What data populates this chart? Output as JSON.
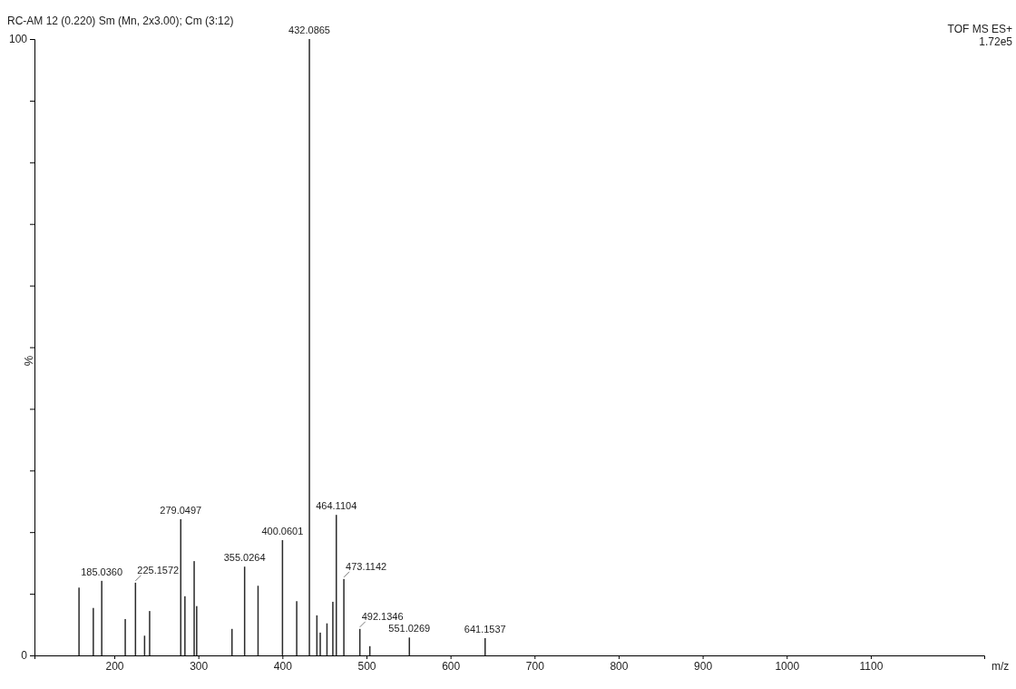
{
  "chart_data": {
    "type": "bar",
    "title": "RC-AM  12 (0.220) Sm (Mn, 2x3.00); Cm (3:12)",
    "xlabel": "m/z",
    "ylabel": "%",
    "x": [
      158,
      175,
      185.036,
      213,
      225.1572,
      236,
      242,
      279.0497,
      284,
      295,
      298,
      340,
      355.0264,
      371,
      400.0601,
      417,
      432.0865,
      441,
      445,
      453,
      460,
      464.1104,
      473.1142,
      492.1346,
      504,
      551.0269,
      641.1537
    ],
    "values": [
      11.0,
      7.7,
      12.1,
      5.9,
      11.8,
      3.2,
      7.2,
      22.1,
      9.6,
      15.3,
      8.0,
      4.3,
      14.4,
      11.3,
      18.7,
      8.8,
      100,
      6.5,
      3.7,
      5.2,
      8.7,
      22.8,
      12.4,
      4.3,
      1.5,
      2.9,
      2.8
    ],
    "color": "#2a2a2a",
    "xlim": [
      105,
      1235
    ],
    "ylim": [
      0,
      100
    ],
    "xticks": [
      200,
      300,
      400,
      500,
      600,
      700,
      800,
      900,
      1000,
      1100
    ],
    "yticks": [
      0,
      {
        "value": 10,
        "label": null
      },
      {
        "value": 20,
        "label": null
      },
      {
        "value": 30,
        "label": null
      },
      {
        "value": 40,
        "label": null
      },
      {
        "value": 50,
        "label": null
      },
      {
        "value": 60,
        "label": null
      },
      {
        "value": 70,
        "label": null
      },
      {
        "value": 80,
        "label": null
      },
      {
        "value": 90,
        "label": null
      },
      100
    ],
    "annotations": [
      "TOF MS ES+",
      "1.72e5",
      {
        "text": "185.0360",
        "x": 185.036,
        "y": 12.1
      },
      {
        "text": "225.1572",
        "x": 225.1572,
        "y": 11.8
      },
      {
        "text": "279.0497",
        "x": 279.0497,
        "y": 22.1
      },
      {
        "text": "355.0264",
        "x": 355.0264,
        "y": 14.4
      },
      {
        "text": "400.0601",
        "x": 400.0601,
        "y": 18.7
      },
      {
        "text": "432.0865",
        "x": 432.0865,
        "y": 100
      },
      {
        "text": "464.1104",
        "x": 464.1104,
        "y": 22.8
      },
      {
        "text": "473.1142",
        "x": 473.1142,
        "y": 12.4
      },
      {
        "text": "492.1346",
        "x": 492.1346,
        "y": 4.3
      },
      {
        "text": "551.0269",
        "x": 551.0269,
        "y": 2.9
      },
      {
        "text": "641.1537",
        "x": 641.1537,
        "y": 2.8
      }
    ]
  }
}
